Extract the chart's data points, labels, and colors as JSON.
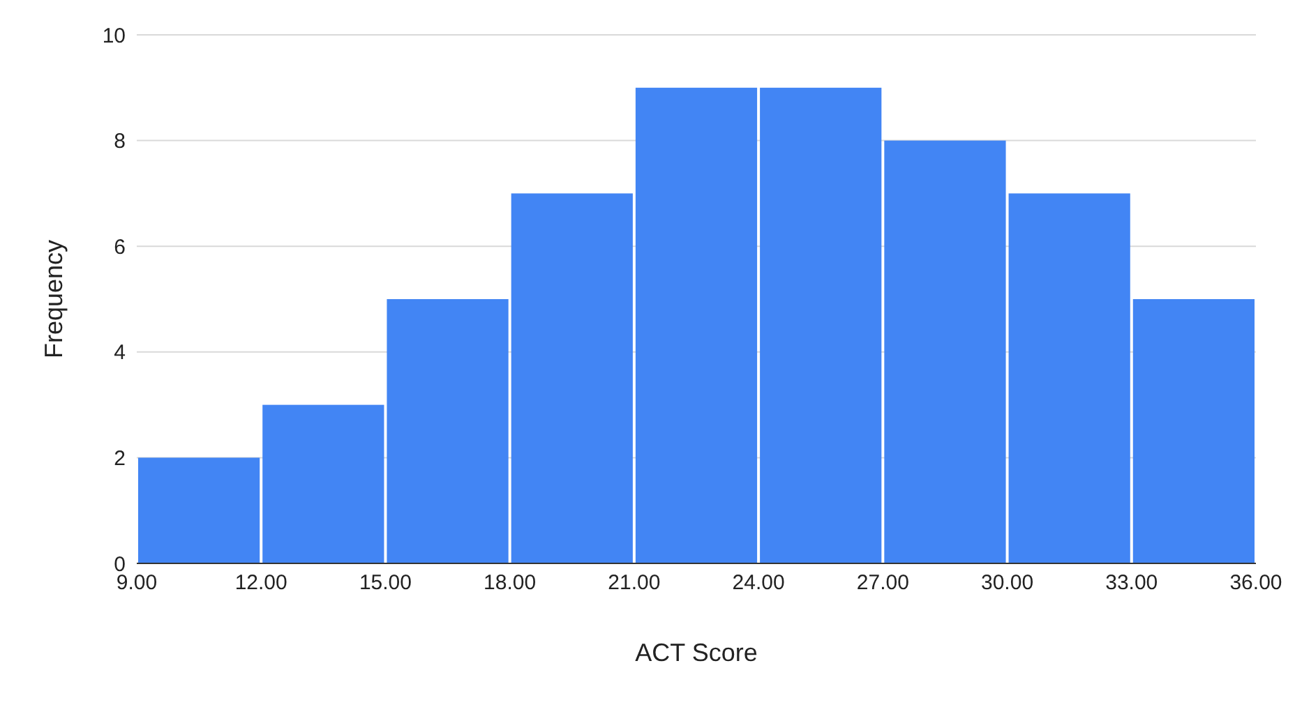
{
  "chart_data": {
    "type": "histogram",
    "xlabel": "ACT Score",
    "ylabel": "Frequency",
    "bins": [
      9,
      12,
      15,
      18,
      21,
      24,
      27,
      30,
      33,
      36
    ],
    "values": [
      2,
      3,
      5,
      7,
      9,
      9,
      8,
      7,
      5
    ],
    "color": "#4285f4",
    "xlim": [
      9,
      36
    ],
    "xticks": [
      {
        "value": 9,
        "label": "9.00"
      },
      {
        "value": 12,
        "label": "12.00"
      },
      {
        "value": 15,
        "label": "15.00"
      },
      {
        "value": 18,
        "label": "18.00"
      },
      {
        "value": 21,
        "label": "21.00"
      },
      {
        "value": 24,
        "label": "24.00"
      },
      {
        "value": 27,
        "label": "27.00"
      },
      {
        "value": 30,
        "label": "30.00"
      },
      {
        "value": 33,
        "label": "33.00"
      },
      {
        "value": 36,
        "label": "36.00"
      }
    ],
    "ylim": [
      0,
      10
    ],
    "yticks": [
      0,
      2,
      4,
      6,
      8,
      10
    ],
    "grid": "y",
    "legend": false
  }
}
